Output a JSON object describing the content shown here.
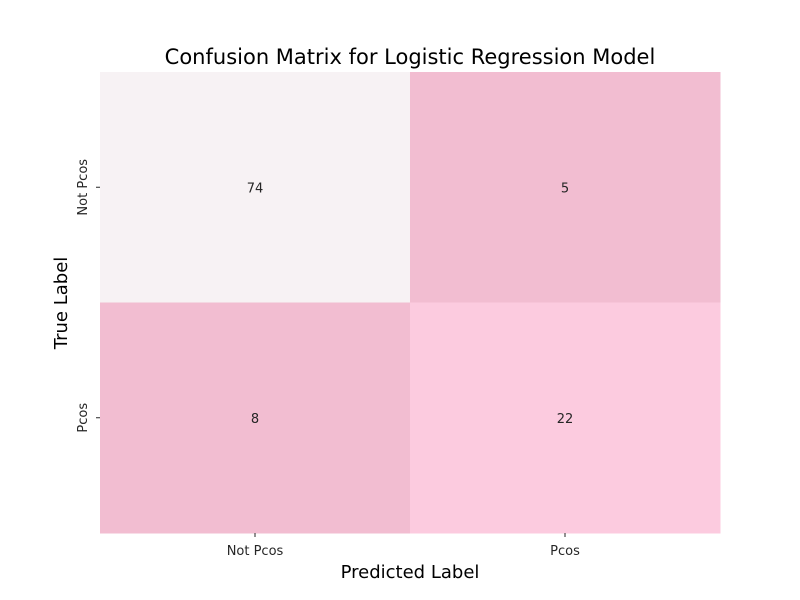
{
  "chart_data": {
    "type": "heatmap",
    "title": "Confusion Matrix for Logistic Regression Model",
    "xlabel": "Predicted Label",
    "ylabel": "True Label",
    "x_categories": [
      "Not Pcos",
      "Pcos"
    ],
    "y_categories": [
      "Not Pcos",
      "Pcos"
    ],
    "values": [
      [
        74,
        5
      ],
      [
        8,
        22
      ]
    ],
    "cell_colors": [
      [
        "#f7f2f4",
        "#f2bdd1"
      ],
      [
        "#f2bdd1",
        "#fccbdf"
      ]
    ],
    "colorbar": false
  }
}
